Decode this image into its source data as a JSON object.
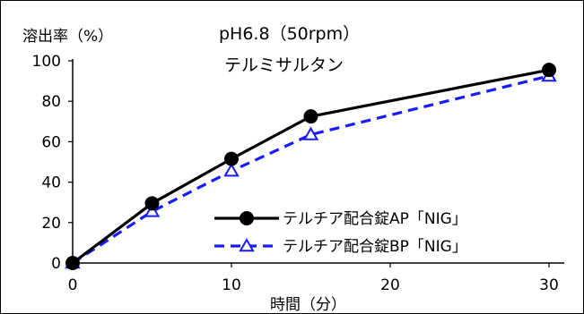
{
  "chart_data": {
    "type": "line",
    "title": "pH6.8（50rpm）",
    "subtitle": "テルミサルタン",
    "ylabel": "溶出率（%）",
    "xlabel": "時間（分）",
    "xlim": [
      0,
      30
    ],
    "ylim": [
      0,
      100
    ],
    "xticks": [
      0,
      10,
      20,
      30
    ],
    "yticks": [
      0,
      20,
      40,
      60,
      80,
      100
    ],
    "xtick_labels": [
      "0",
      "10",
      "20",
      "30"
    ],
    "ytick_labels": [
      "0",
      "20",
      "40",
      "60",
      "80",
      "100"
    ],
    "grid": false,
    "legend_position": "bottom-right",
    "x": [
      0,
      5,
      10,
      15,
      30
    ],
    "series": [
      {
        "name": "テルチア配合錠AP「NIG」",
        "values": [
          0,
          29.5,
          51.5,
          72.5,
          95.5
        ],
        "color": "#000000",
        "line_style": "solid",
        "marker": "filled-circle"
      },
      {
        "name": "テルチア配合錠BP「NIG」",
        "values": [
          0,
          25.5,
          45.5,
          63.5,
          92.5
        ],
        "color": "#1a1aff",
        "line_style": "dashed",
        "marker": "open-triangle"
      }
    ]
  }
}
